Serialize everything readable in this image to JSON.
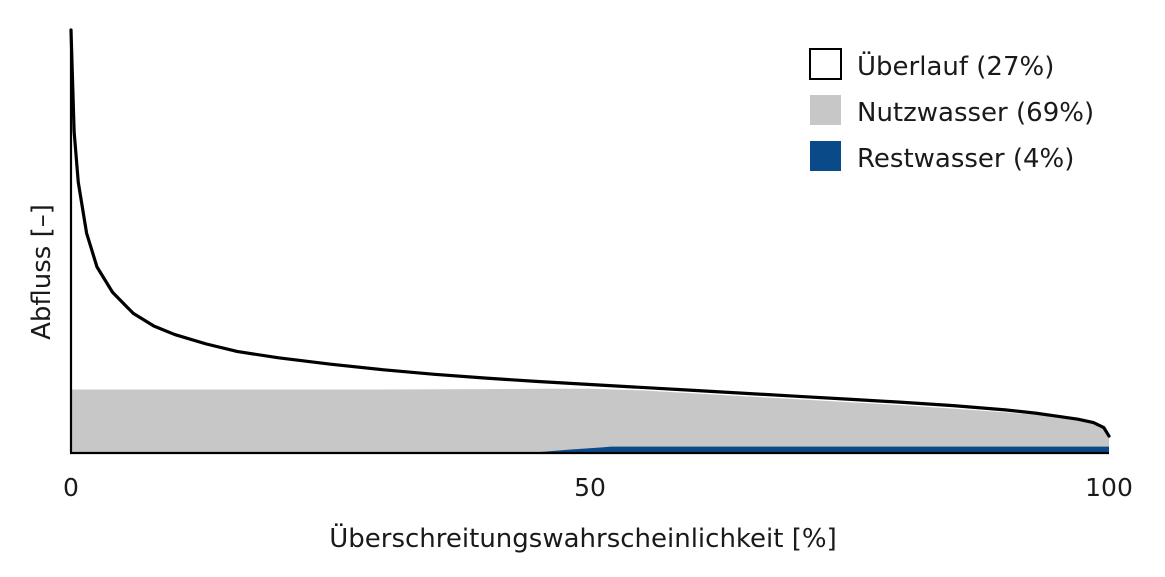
{
  "chart_data": {
    "type": "area",
    "title": "",
    "xlabel": "Überschreitungswahrscheinlichkeit [%]",
    "ylabel": "Abfluss [–]",
    "xlim": [
      0,
      100
    ],
    "ylim": [
      0,
      1
    ],
    "x_ticks": [
      "0",
      "50",
      "100"
    ],
    "grid": false,
    "legend_position": "top-right",
    "legend": [
      {
        "label": "Überlauf (27%)",
        "color": "#ffffff"
      },
      {
        "label": "Nutzwasser (69%)",
        "color": "#c6c7c6"
      },
      {
        "label": "Restwasser (4%)",
        "color": "#0b4a88"
      }
    ],
    "series": [
      {
        "name": "Überlauf (27%)",
        "kind": "line",
        "color": "#000000",
        "x": [
          0,
          0.3,
          0.7,
          1.5,
          2.5,
          4,
          6,
          8,
          10,
          13,
          16,
          20,
          25,
          30,
          35,
          40,
          45,
          50,
          55,
          60,
          65,
          70,
          75,
          80,
          85,
          90,
          93,
          95,
          97,
          98.5,
          99.5,
          100
        ],
        "y": [
          1.0,
          0.76,
          0.64,
          0.52,
          0.44,
          0.38,
          0.33,
          0.3,
          0.28,
          0.258,
          0.24,
          0.225,
          0.21,
          0.197,
          0.186,
          0.177,
          0.169,
          0.162,
          0.155,
          0.148,
          0.141,
          0.134,
          0.127,
          0.12,
          0.112,
          0.102,
          0.094,
          0.087,
          0.08,
          0.072,
          0.06,
          0.04
        ]
      },
      {
        "name": "Nutzwasser (69%)",
        "kind": "area",
        "color": "#c6c7c6",
        "x": [
          0,
          10,
          20,
          30,
          40,
          45,
          50,
          55,
          60,
          65,
          70,
          75,
          80,
          85,
          90,
          93,
          95,
          97,
          98.5,
          99.5,
          100
        ],
        "y": [
          0.15,
          0.15,
          0.15,
          0.15,
          0.151,
          0.152,
          0.152,
          0.148,
          0.141,
          0.134,
          0.127,
          0.12,
          0.113,
          0.105,
          0.096,
          0.09,
          0.085,
          0.078,
          0.07,
          0.058,
          0.04
        ]
      },
      {
        "name": "Restwasser (4%)",
        "kind": "area",
        "color": "#0b4a88",
        "x": [
          0,
          44,
          48,
          51,
          52,
          60,
          70,
          80,
          90,
          100
        ],
        "y": [
          0,
          0,
          0.008,
          0.013,
          0.015,
          0.015,
          0.015,
          0.015,
          0.015,
          0.015
        ]
      }
    ]
  }
}
